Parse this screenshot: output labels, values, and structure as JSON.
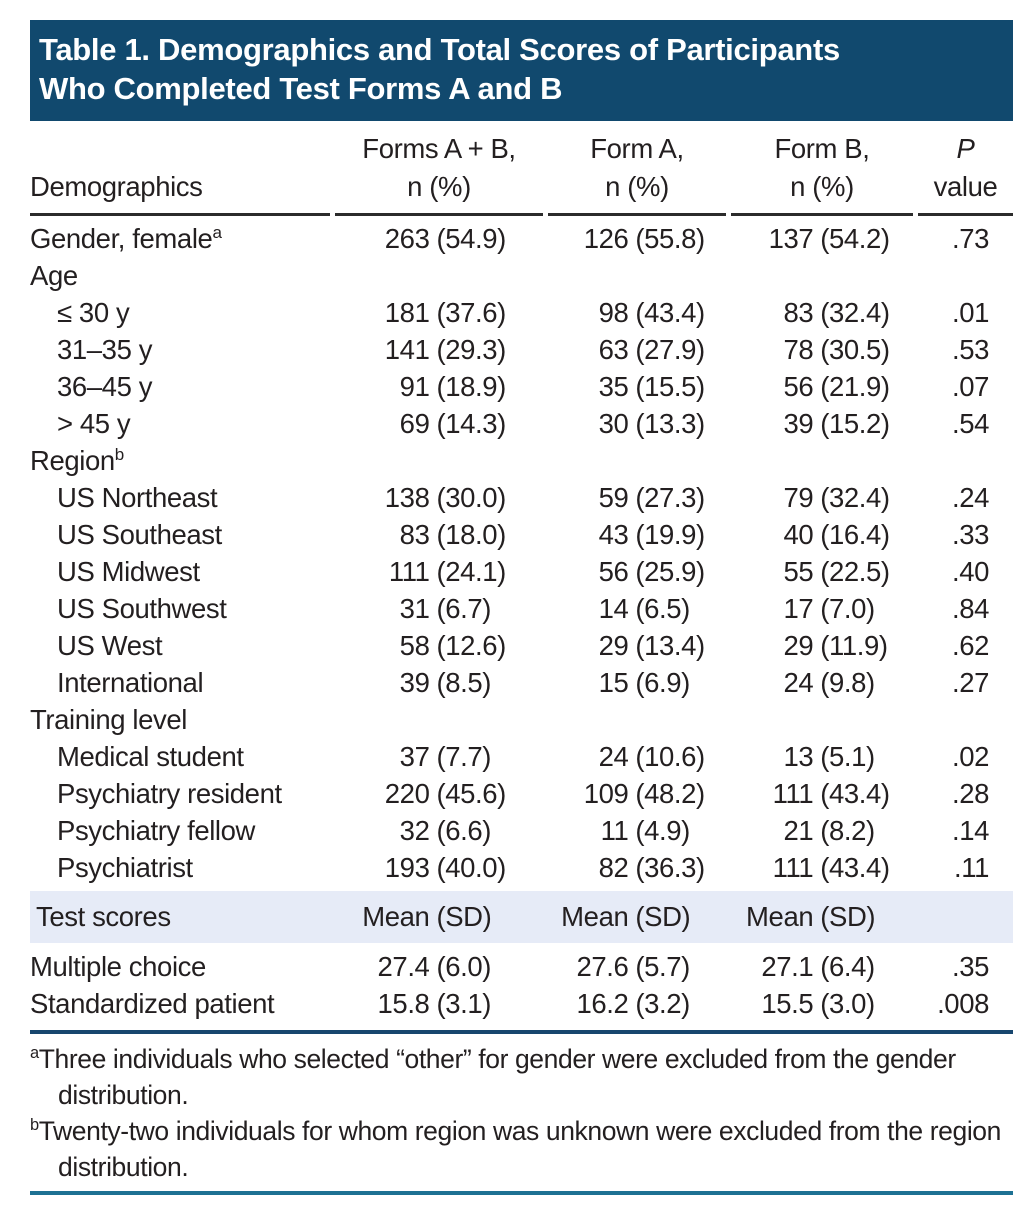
{
  "title": {
    "line1": "Table 1. Demographics and Total Scores of Participants",
    "line2": "Who Completed Test Forms A and B"
  },
  "columns": {
    "label_header": "Demographics",
    "groups": [
      {
        "line1": "Forms A + B,",
        "line2": "n (%)"
      },
      {
        "line1": "Form A,",
        "line2": "n (%)"
      },
      {
        "line1": "Form B,",
        "line2": "n (%)"
      }
    ],
    "p": {
      "line1": "P",
      "line2": "value"
    }
  },
  "rows": [
    {
      "label": "Gender, female",
      "sup": "a",
      "indent": 0,
      "values": [
        "263 (54.9)",
        "126 (55.8)",
        "137 (54.2)"
      ],
      "p": ".73"
    },
    {
      "label": "Age",
      "indent": 0,
      "values": [],
      "p": ""
    },
    {
      "label": "≤ 30 y",
      "indent": 1,
      "values": [
        "181 (37.6)",
        "98 (43.4)",
        "83 (32.4)"
      ],
      "p": ".01"
    },
    {
      "label": "31–35 y",
      "indent": 1,
      "values": [
        "141 (29.3)",
        "63 (27.9)",
        "78 (30.5)"
      ],
      "p": ".53"
    },
    {
      "label": "36–45 y",
      "indent": 1,
      "values": [
        "91 (18.9)",
        "35 (15.5)",
        "56 (21.9)"
      ],
      "p": ".07"
    },
    {
      "label": "> 45 y",
      "indent": 1,
      "values": [
        "69 (14.3)",
        "30 (13.3)",
        "39 (15.2)"
      ],
      "p": ".54"
    },
    {
      "label": "Region",
      "sup": "b",
      "indent": 0,
      "values": [],
      "p": ""
    },
    {
      "label": "US Northeast",
      "indent": 1,
      "values": [
        "138 (30.0)",
        "59 (27.3)",
        "79 (32.4)"
      ],
      "p": ".24"
    },
    {
      "label": "US Southeast",
      "indent": 1,
      "values": [
        "83 (18.0)",
        "43 (19.9)",
        "40 (16.4)"
      ],
      "p": ".33"
    },
    {
      "label": "US Midwest",
      "indent": 1,
      "values": [
        "111 (24.1)",
        "56 (25.9)",
        "55 (22.5)"
      ],
      "p": ".40"
    },
    {
      "label": "US Southwest",
      "indent": 1,
      "values": [
        "31 (6.7)",
        "14 (6.5)",
        "17 (7.0)"
      ],
      "p": ".84"
    },
    {
      "label": "US West",
      "indent": 1,
      "values": [
        "58 (12.6)",
        "29 (13.4)",
        "29 (11.9)"
      ],
      "p": ".62"
    },
    {
      "label": "International",
      "indent": 1,
      "values": [
        "39 (8.5)",
        "15 (6.9)",
        "24 (9.8)"
      ],
      "p": ".27"
    },
    {
      "label": "Training level",
      "indent": 0,
      "values": [],
      "p": ""
    },
    {
      "label": "Medical student",
      "indent": 1,
      "values": [
        "37 (7.7)",
        "24 (10.6)",
        "13 (5.1)"
      ],
      "p": ".02"
    },
    {
      "label": "Psychiatry resident",
      "indent": 1,
      "values": [
        "220 (45.6)",
        "109 (48.2)",
        "111 (43.4)"
      ],
      "p": ".28"
    },
    {
      "label": "Psychiatry fellow",
      "indent": 1,
      "values": [
        "32 (6.6)",
        "11 (4.9)",
        "21 (8.2)"
      ],
      "p": ".14"
    },
    {
      "label": "Psychiatrist",
      "indent": 1,
      "values": [
        "193 (40.0)",
        "82 (36.3)",
        "111 (43.4)"
      ],
      "p": ".11"
    }
  ],
  "test_scores_band": {
    "label": "Test scores",
    "indent": 0,
    "values": [
      "Mean (SD)",
      "Mean (SD)",
      "Mean (SD)"
    ],
    "p": ""
  },
  "score_rows": [
    {
      "label": "Multiple choice",
      "indent": 0,
      "values": [
        "27.4 (6.0)",
        "27.6 (5.7)",
        "27.1 (6.4)"
      ],
      "p": ".35"
    },
    {
      "label": "Standardized patient",
      "indent": 0,
      "values": [
        "15.8 (3.1)",
        "16.2 (3.2)",
        "15.5 (3.0)"
      ],
      "p": ".008"
    }
  ],
  "footnotes": [
    {
      "marker": "a",
      "text": "Three individuals who selected “other” for gender were excluded from the gender distribution."
    },
    {
      "marker": "b",
      "text": "Twenty-two individuals for whom region was unknown were excluded from the region distribution."
    }
  ],
  "colors": {
    "header_bar": "#11496e",
    "band_bg": "#e6ebf7",
    "navy_rule": "#17466e",
    "teal_rule": "#1d7193",
    "text": "#231f20"
  }
}
